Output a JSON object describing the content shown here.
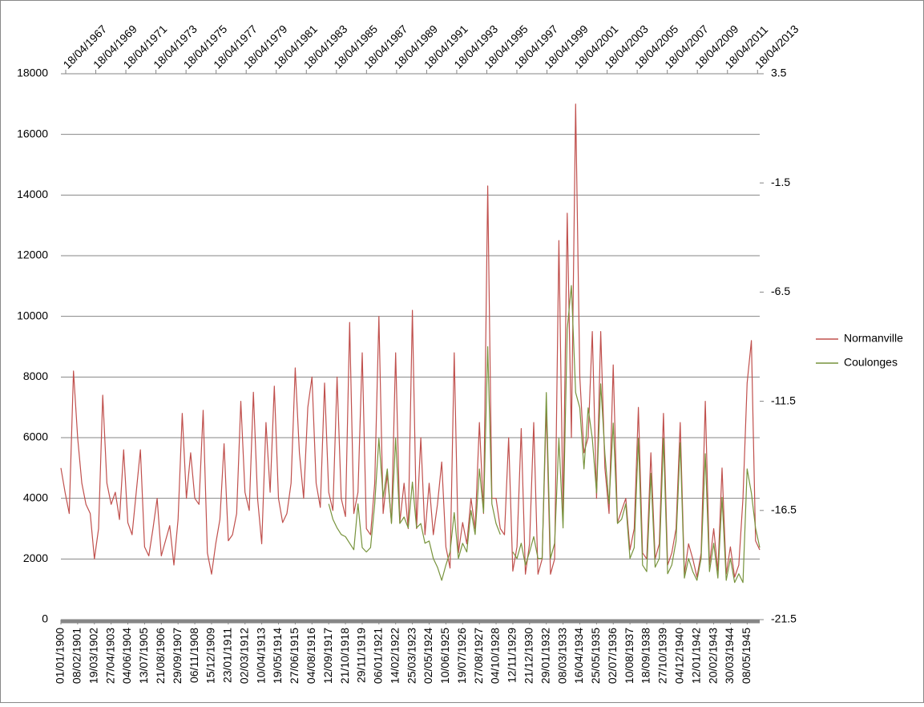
{
  "chart_data": {
    "type": "line",
    "categories": [
      "01/01/1900",
      null,
      null,
      null,
      "08/02/1901",
      null,
      null,
      null,
      "19/03/1902",
      null,
      null,
      null,
      "27/04/1903",
      null,
      null,
      null,
      "04/06/1904",
      null,
      null,
      null,
      "13/07/1905",
      null,
      null,
      null,
      "21/08/1906",
      null,
      null,
      null,
      "29/09/1907",
      null,
      null,
      null,
      "06/11/1908",
      null,
      null,
      null,
      "15/12/1909",
      null,
      null,
      null,
      "23/01/1911",
      null,
      null,
      null,
      "02/03/1912",
      null,
      null,
      null,
      "10/04/1913",
      null,
      null,
      null,
      "19/05/1914",
      null,
      null,
      null,
      "27/06/1915",
      null,
      null,
      null,
      "04/08/1916",
      null,
      null,
      null,
      "12/09/1917",
      null,
      null,
      null,
      "21/10/1918",
      null,
      null,
      null,
      "29/11/1919",
      null,
      null,
      null,
      "06/01/1921",
      null,
      null,
      null,
      "14/02/1922",
      null,
      null,
      null,
      "25/03/1923",
      null,
      null,
      null,
      "02/05/1924",
      null,
      null,
      null,
      "10/06/1925",
      null,
      null,
      null,
      "19/07/1926",
      null,
      null,
      null,
      "27/08/1927",
      null,
      null,
      null,
      "04/10/1928",
      null,
      null,
      null,
      "12/11/1929",
      null,
      null,
      null,
      "21/12/1930",
      null,
      null,
      null,
      "29/01/1932",
      null,
      null,
      null,
      "08/03/1933",
      null,
      null,
      null,
      "16/04/1934",
      null,
      null,
      null,
      "25/05/1935",
      null,
      null,
      null,
      "02/07/1936",
      null,
      null,
      null,
      "10/08/1937",
      null,
      null,
      null,
      "18/09/1938",
      null,
      null,
      null,
      "27/10/1939",
      null,
      null,
      null,
      "04/12/1940",
      null,
      null,
      null,
      "12/01/1942",
      null,
      null,
      null,
      "20/02/1943",
      null,
      null,
      null,
      "30/03/1944",
      null,
      null,
      null,
      "08/05/1945",
      null,
      null,
      null
    ],
    "x2categories": [
      "18/04/1967",
      "18/04/1969",
      "18/04/1971",
      "18/04/1973",
      "18/04/1975",
      "18/04/1977",
      "18/04/1979",
      "18/04/1981",
      "18/04/1983",
      "18/04/1985",
      "18/04/1987",
      "18/04/1989",
      "18/04/1991",
      "18/04/1993",
      "18/04/1995",
      "18/04/1997",
      "18/04/1999",
      "18/04/2001",
      "18/04/2003",
      "18/04/2005",
      "18/04/2007",
      "18/04/2009",
      "18/04/2011",
      "18/04/2013"
    ],
    "series": [
      {
        "name": "Normanville",
        "color": "#c0504d",
        "values": [
          5000,
          4200,
          3500,
          8200,
          6000,
          4500,
          3800,
          3500,
          2000,
          3000,
          7400,
          4500,
          3800,
          4200,
          3300,
          5600,
          3200,
          2800,
          4200,
          5600,
          2400,
          2100,
          3000,
          4000,
          2100,
          2600,
          3100,
          1800,
          3300,
          6800,
          4000,
          5500,
          4000,
          3800,
          6900,
          2200,
          1500,
          2500,
          3300,
          5800,
          2600,
          2800,
          3500,
          7200,
          4200,
          3600,
          7500,
          4000,
          2500,
          6500,
          4200,
          7700,
          4000,
          3200,
          3500,
          4500,
          8300,
          5500,
          4000,
          7000,
          8000,
          4500,
          3700,
          7800,
          4200,
          3600,
          8000,
          4000,
          3400,
          9800,
          3500,
          4200,
          8800,
          3000,
          2800,
          4500,
          10000,
          3500,
          4800,
          3200,
          8800,
          3200,
          4500,
          3000,
          10200,
          3000,
          6000,
          2800,
          4500,
          2800,
          3800,
          5200,
          2400,
          1700,
          8800,
          2200,
          3200,
          2500,
          4000,
          3000,
          6500,
          3500,
          14300,
          4000,
          4000,
          3000,
          2800,
          6000,
          1600,
          2400,
          6300,
          1500,
          2500,
          6500,
          1500,
          2000,
          7000,
          1500,
          2000,
          12500,
          3500,
          13400,
          6000,
          17000,
          8000,
          5500,
          6000,
          9500,
          4000,
          9500,
          5000,
          3500,
          8400,
          3200,
          3600,
          4000,
          2300,
          3000,
          7000,
          2200,
          2000,
          5500,
          2000,
          2500,
          6800,
          1800,
          2200,
          3000,
          6500,
          1500,
          2500,
          2000,
          1400,
          2200,
          7200,
          1800,
          3000,
          1600,
          5000,
          1500,
          2400,
          1400,
          1800,
          4000,
          7800,
          9200,
          2600,
          2300
        ]
      },
      {
        "name": "Coulonges",
        "color": "#77933c",
        "axis": "y2",
        "values": [
          null,
          null,
          null,
          null,
          null,
          null,
          null,
          null,
          null,
          null,
          null,
          null,
          null,
          null,
          null,
          null,
          null,
          null,
          null,
          null,
          null,
          null,
          null,
          null,
          null,
          null,
          null,
          null,
          null,
          null,
          null,
          null,
          null,
          null,
          null,
          null,
          null,
          null,
          null,
          null,
          null,
          null,
          null,
          null,
          null,
          null,
          null,
          null,
          null,
          null,
          null,
          null,
          null,
          null,
          null,
          null,
          null,
          null,
          null,
          null,
          null,
          null,
          null,
          null,
          -16.2,
          -16.9,
          -17.3,
          -17.6,
          -17.7,
          -18.0,
          -18.3,
          -16.2,
          -18.2,
          -18.4,
          -18.2,
          -16.2,
          -13.2,
          -15.9,
          -14.6,
          -17.1,
          -13.2,
          -17.1,
          -16.8,
          -17.3,
          -15.2,
          -17.3,
          -17.1,
          -18.0,
          -17.9,
          -18.7,
          -19.1,
          -19.7,
          -19.0,
          -18.4,
          -16.6,
          -18.7,
          -18.0,
          -18.4,
          -16.5,
          -17.6,
          -14.6,
          -16.6,
          -9.0,
          -16.2,
          -17.1,
          -17.6,
          null,
          null,
          -18.4,
          -18.7,
          -18.0,
          -19.0,
          -18.4,
          -17.7,
          -18.7,
          -18.7,
          -11.1,
          -18.7,
          -18.0,
          -13.2,
          -17.3,
          -8.2,
          -6.2,
          -11.1,
          -11.8,
          -14.6,
          -11.8,
          -13.2,
          -15.7,
          -10.7,
          -13.9,
          -16.2,
          -12.5,
          -17.1,
          -16.9,
          -16.2,
          -18.7,
          -18.2,
          -13.2,
          -19.0,
          -19.3,
          -14.8,
          -19.1,
          -18.7,
          -13.2,
          -19.4,
          -19.0,
          -17.9,
          -13.4,
          -19.6,
          -18.7,
          -19.3,
          -19.7,
          -18.7,
          -13.9,
          -19.3,
          -18.0,
          -19.6,
          -15.9,
          -19.7,
          -18.7,
          -19.8,
          -19.4,
          -19.8,
          -14.6,
          -15.7,
          -17.3,
          -18.2
        ]
      }
    ],
    "ylim": [
      0,
      18000
    ],
    "yticks": [
      0,
      2000,
      4000,
      6000,
      8000,
      10000,
      12000,
      14000,
      16000,
      18000
    ],
    "y2lim": [
      -21.5,
      3.5
    ],
    "y2ticks": [
      -21.5,
      -16.5,
      -11.5,
      -6.5,
      -1.5,
      3.5
    ],
    "grid": true
  }
}
